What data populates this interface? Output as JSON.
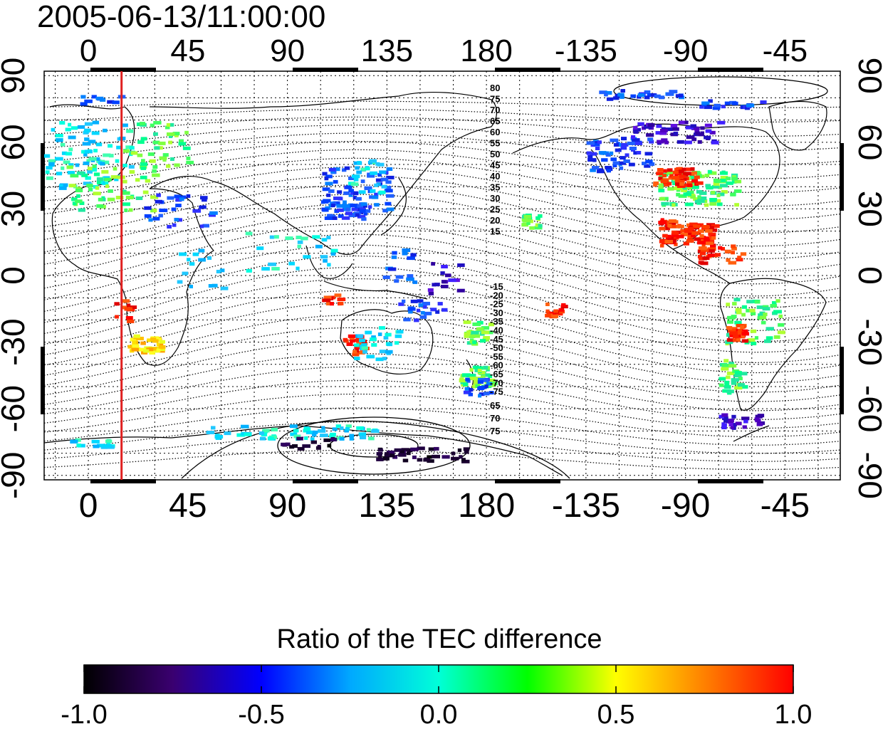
{
  "map": {
    "title": "2005-06-13/11:00:00",
    "lon_ticks_top": [
      "0",
      "45",
      "90",
      "135",
      "180",
      "-135",
      "-90",
      "-45"
    ],
    "lon_ticks_bottom": [
      "0",
      "45",
      "90",
      "135",
      "180",
      "-135",
      "-90",
      "-45"
    ],
    "lat_ticks_left": [
      "90",
      "60",
      "30",
      "0",
      "-30",
      "-60",
      "-90"
    ],
    "lat_ticks_right": [
      "90",
      "60",
      "30",
      "0",
      "-30",
      "-60",
      "-90"
    ],
    "contour_labels_north": [
      "80",
      "75",
      "70",
      "65",
      "60",
      "55",
      "50",
      "45",
      "40",
      "35",
      "30",
      "25",
      "20",
      "15"
    ],
    "contour_labels_south": [
      "-15",
      "-20",
      "-25",
      "-30",
      "-35",
      "-40",
      "-45",
      "-50",
      "-55",
      "-60",
      "-65",
      "-70",
      "-75"
    ],
    "contour_labels_pole": [
      "65",
      "70",
      "75"
    ],
    "marker_line": {
      "longitude": 15,
      "color": "#e02020"
    },
    "colors": {
      "grid": "#000000",
      "coast": "#000000",
      "marker": "#e02020"
    }
  },
  "colorbar": {
    "title": "Ratio of the TEC difference",
    "min": -1.0,
    "max": 1.0,
    "ticks": [
      "-1.0",
      "-0.5",
      "0.0",
      "0.5",
      "1.0"
    ],
    "stops": [
      "#000000",
      "#3a0070",
      "#0000ff",
      "#00a8ff",
      "#00ffd8",
      "#00ff00",
      "#ffff00",
      "#ff8000",
      "#ff0000"
    ]
  }
}
